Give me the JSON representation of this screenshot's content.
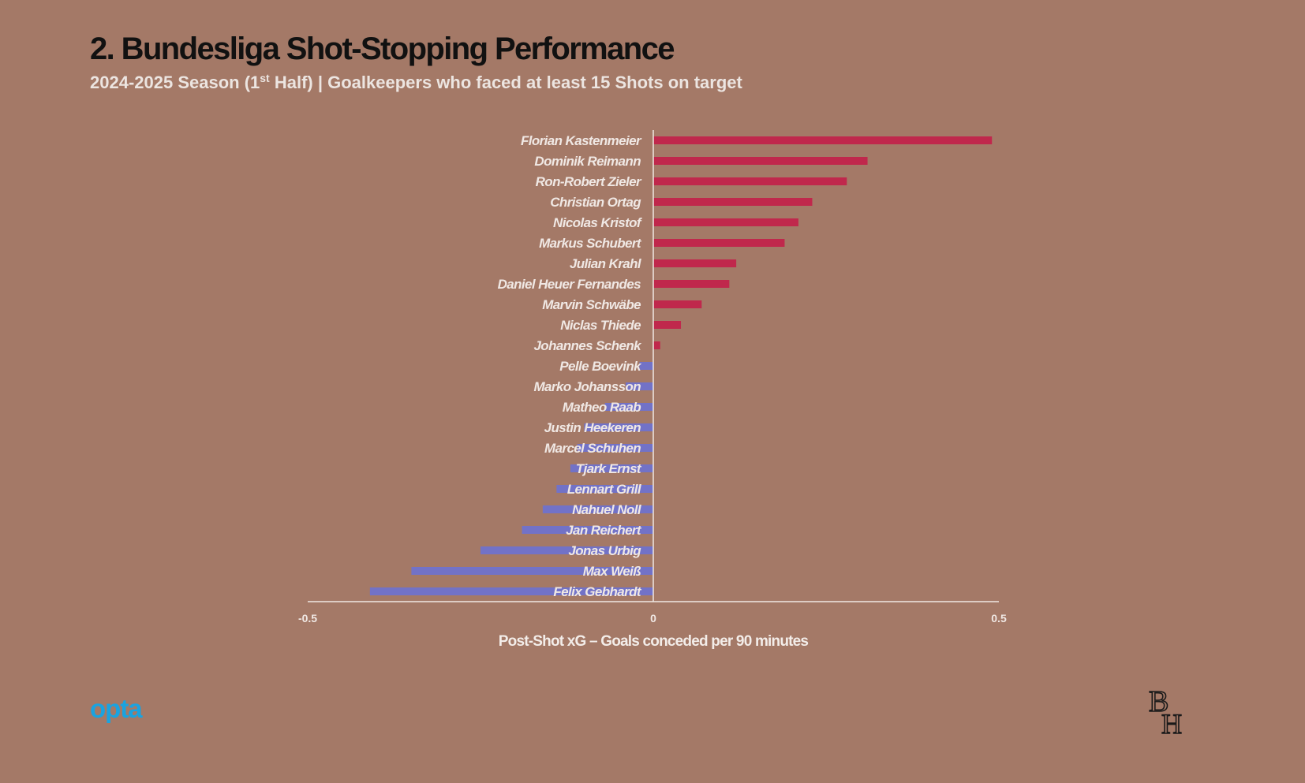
{
  "header": {
    "title": "2. Bundesliga Shot-Stopping Performance",
    "subtitle_pre": "2024-2025 Season (1",
    "subtitle_sup": "st",
    "subtitle_post": " Half) | Goalkeepers who faced at least 15 Shots on target"
  },
  "colors": {
    "background": "#a47967",
    "positive": "#c0284c",
    "negative": "#7272c7",
    "label": "#f0e8e4",
    "axis": "#f0e8e4"
  },
  "chart_data": {
    "type": "bar",
    "orientation": "horizontal",
    "categories": [
      "Florian Kastenmeier",
      "Dominik Reimann",
      "Ron-Robert Zieler",
      "Christian Ortag",
      "Nicolas Kristof",
      "Markus Schubert",
      "Julian Krahl",
      "Daniel Heuer Fernandes",
      "Marvin Schwäbe",
      "Niclas Thiede",
      "Johannes Schenk",
      "Pelle Boevink",
      "Marko Johansson",
      "Matheo Raab",
      "Justin Heekeren",
      "Marcel Schuhen",
      "Tjark Ernst",
      "Lennart Grill",
      "Nahuel Noll",
      "Jan Reichert",
      "Jonas Urbig",
      "Max Weiß",
      "Felix Gebhardt"
    ],
    "values": [
      0.49,
      0.31,
      0.28,
      0.23,
      0.21,
      0.19,
      0.12,
      0.11,
      0.07,
      0.04,
      0.01,
      -0.02,
      -0.04,
      -0.07,
      -0.1,
      -0.11,
      -0.12,
      -0.14,
      -0.16,
      -0.19,
      -0.25,
      -0.35,
      -0.41
    ],
    "xlabel": "Post-Shot xG – Goals conceded per 90 minutes",
    "xlim": [
      -0.5,
      0.5
    ],
    "xticks": [
      {
        "value": -0.5,
        "label": "-0.5"
      },
      {
        "value": 0,
        "label": "0"
      },
      {
        "value": 0.5,
        "label": "0.5"
      }
    ],
    "grid": false,
    "legend": "none"
  },
  "footer": {
    "source_logo": "opta",
    "brand_logo_top": "B",
    "brand_logo_bottom": "H"
  }
}
